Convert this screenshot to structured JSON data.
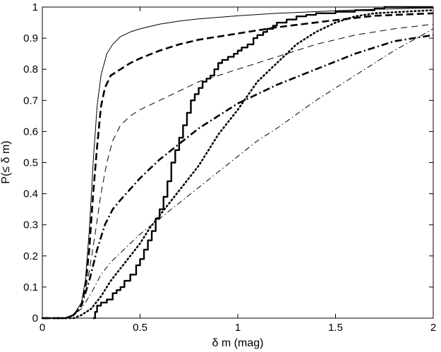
{
  "chart_data": {
    "type": "line",
    "xlabel": "δ m (mag)",
    "ylabel": "P(≤ δ m)",
    "xlim": [
      0,
      2
    ],
    "ylim": [
      0,
      1
    ],
    "x_ticks": [
      "0",
      "0.5",
      "1",
      "1.5",
      "2"
    ],
    "y_ticks": [
      "0",
      "0.1",
      "0.2",
      "0.3",
      "0.4",
      "0.5",
      "0.6",
      "0.7",
      "0.8",
      "0.9",
      "1"
    ],
    "grid": false,
    "series": [
      {
        "style": "thin-solid",
        "x": [
          0,
          0.12,
          0.16,
          0.2,
          0.22,
          0.24,
          0.26,
          0.28,
          0.3,
          0.33,
          0.36,
          0.4,
          0.45,
          0.5,
          0.6,
          0.7,
          0.8,
          1.0,
          1.2,
          1.5,
          1.7,
          2.0
        ],
        "y": [
          0,
          0,
          0.01,
          0.05,
          0.12,
          0.28,
          0.5,
          0.68,
          0.78,
          0.85,
          0.88,
          0.905,
          0.92,
          0.93,
          0.945,
          0.955,
          0.962,
          0.972,
          0.98,
          0.988,
          0.993,
          0.997
        ]
      },
      {
        "style": "thick-dashed",
        "x": [
          0,
          0.12,
          0.16,
          0.2,
          0.22,
          0.24,
          0.26,
          0.28,
          0.3,
          0.32,
          0.35,
          0.4,
          0.45,
          0.5,
          0.6,
          0.7,
          0.8,
          1.0,
          1.2,
          1.5,
          1.7,
          2.0
        ],
        "y": [
          0,
          0,
          0.01,
          0.04,
          0.1,
          0.22,
          0.4,
          0.55,
          0.68,
          0.74,
          0.78,
          0.8,
          0.82,
          0.835,
          0.86,
          0.88,
          0.895,
          0.915,
          0.935,
          0.958,
          0.972,
          0.98
        ]
      },
      {
        "style": "thin-dashed",
        "x": [
          0,
          0.12,
          0.16,
          0.2,
          0.24,
          0.27,
          0.3,
          0.33,
          0.36,
          0.4,
          0.45,
          0.5,
          0.6,
          0.7,
          0.8,
          1.0,
          1.2,
          1.4,
          1.6,
          1.8,
          2.0
        ],
        "y": [
          0,
          0,
          0.01,
          0.04,
          0.15,
          0.27,
          0.4,
          0.5,
          0.57,
          0.62,
          0.65,
          0.67,
          0.7,
          0.73,
          0.76,
          0.8,
          0.84,
          0.88,
          0.91,
          0.93,
          0.945
        ]
      },
      {
        "style": "thick-dashdot",
        "x": [
          0,
          0.12,
          0.16,
          0.2,
          0.24,
          0.28,
          0.32,
          0.36,
          0.4,
          0.5,
          0.6,
          0.7,
          0.8,
          0.9,
          1.0,
          1.2,
          1.4,
          1.6,
          1.8,
          2.0
        ],
        "y": [
          0,
          0,
          0.01,
          0.04,
          0.12,
          0.22,
          0.3,
          0.35,
          0.38,
          0.45,
          0.51,
          0.56,
          0.61,
          0.65,
          0.69,
          0.75,
          0.8,
          0.85,
          0.89,
          0.91
        ]
      },
      {
        "style": "thin-dashdot",
        "x": [
          0,
          0.12,
          0.16,
          0.2,
          0.25,
          0.3,
          0.35,
          0.4,
          0.5,
          0.6,
          0.7,
          0.8,
          0.9,
          1.0,
          1.1,
          1.2,
          1.4,
          1.6,
          1.8,
          2.0
        ],
        "y": [
          0,
          0,
          0.01,
          0.03,
          0.08,
          0.14,
          0.18,
          0.21,
          0.27,
          0.32,
          0.37,
          0.42,
          0.47,
          0.52,
          0.57,
          0.61,
          0.7,
          0.78,
          0.86,
          0.93
        ]
      },
      {
        "style": "thick-dotted",
        "x": [
          0,
          0.16,
          0.2,
          0.25,
          0.3,
          0.35,
          0.4,
          0.45,
          0.5,
          0.55,
          0.6,
          0.65,
          0.7,
          0.8,
          0.9,
          1.0,
          1.1,
          1.2,
          1.3,
          1.4,
          1.5,
          1.6,
          1.7,
          2.0
        ],
        "y": [
          0,
          0,
          0.01,
          0.03,
          0.07,
          0.12,
          0.16,
          0.2,
          0.24,
          0.29,
          0.33,
          0.37,
          0.41,
          0.49,
          0.59,
          0.67,
          0.76,
          0.82,
          0.88,
          0.92,
          0.95,
          0.97,
          0.98,
          0.99
        ]
      },
      {
        "style": "thick-stairs",
        "x": [
          0.26,
          0.27,
          0.28,
          0.3,
          0.33,
          0.36,
          0.38,
          0.4,
          0.42,
          0.45,
          0.48,
          0.5,
          0.52,
          0.54,
          0.56,
          0.58,
          0.6,
          0.62,
          0.64,
          0.66,
          0.68,
          0.7,
          0.72,
          0.74,
          0.76,
          0.78,
          0.8,
          0.82,
          0.84,
          0.86,
          0.88,
          0.9,
          0.92,
          0.95,
          0.98,
          1.0,
          1.02,
          1.05,
          1.08,
          1.1,
          1.13,
          1.15,
          1.18,
          1.2,
          1.25,
          1.3,
          1.35,
          1.4,
          1.5,
          1.6,
          1.7,
          1.75,
          2.0
        ],
        "y": [
          0,
          0.02,
          0.04,
          0.05,
          0.06,
          0.08,
          0.09,
          0.1,
          0.12,
          0.14,
          0.17,
          0.19,
          0.22,
          0.25,
          0.28,
          0.32,
          0.35,
          0.39,
          0.44,
          0.5,
          0.54,
          0.58,
          0.62,
          0.66,
          0.7,
          0.72,
          0.74,
          0.76,
          0.77,
          0.78,
          0.8,
          0.82,
          0.83,
          0.84,
          0.85,
          0.86,
          0.87,
          0.88,
          0.9,
          0.91,
          0.92,
          0.93,
          0.94,
          0.95,
          0.96,
          0.97,
          0.975,
          0.98,
          0.985,
          0.99,
          0.995,
          1.0,
          1.0
        ]
      }
    ]
  }
}
